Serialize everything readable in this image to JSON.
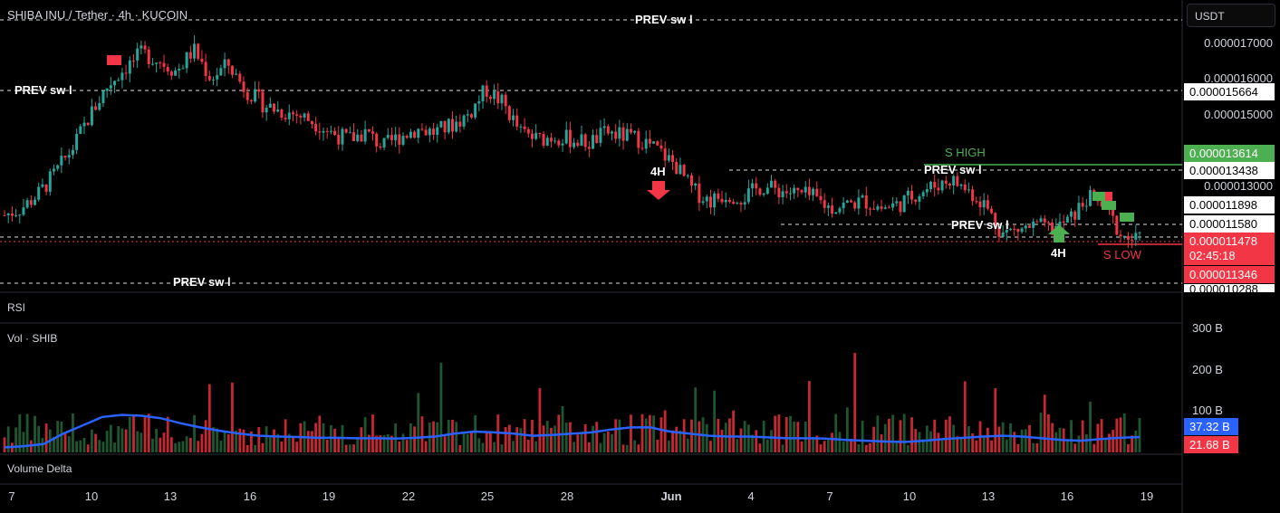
{
  "header": {
    "symbol": "SHIBA INU / Tether · 4h · KUCOIN"
  },
  "scale": {
    "currency": "USDT"
  },
  "price_axis": {
    "ticks": [
      "0.000017000",
      "0.000016000",
      "0.000015000",
      "0.000013000",
      "0.000011580",
      "0.000010288"
    ],
    "tags": {
      "prev_high": "0.000015664",
      "s_high": "0.000013614",
      "prev_mid": "0.000013438",
      "level_a": "0.000011898",
      "last": "0.000011478",
      "countdown": "02:45:18",
      "s_low": "0.000011346"
    }
  },
  "levels": {
    "prev_top": "PREV sw l",
    "prev_left": "PREV sw l",
    "prev_mid": "PREV sw l",
    "prev_low1": "PREV sw l",
    "prev_bottom": "PREV sw l",
    "s_high": "S HIGH",
    "s_low": "S LOW"
  },
  "signals": {
    "sell": "4H",
    "buy": "4H"
  },
  "panes": {
    "rsi": "RSI",
    "vol": "Vol · SHIB",
    "delta": "Volume Delta"
  },
  "volume_axis": {
    "ticks": [
      "300 B",
      "200 B",
      "100 B"
    ],
    "ma_value": "37.32 B",
    "vol_value": "21.68 B"
  },
  "time_axis": {
    "labels": [
      "7",
      "10",
      "13",
      "16",
      "19",
      "22",
      "25",
      "28",
      "Jun",
      "4",
      "7",
      "10",
      "13",
      "16",
      "19"
    ]
  },
  "colors": {
    "up": "#26a69a",
    "down": "#f23645",
    "vol_up": "#1e5631",
    "vol_down": "#c62832",
    "ma": "#2962ff",
    "s_high": "#4caf50",
    "s_low": "#f23645"
  },
  "chart_data": {
    "type": "candlestick",
    "close_series_usdt": [
      1.22e-05,
      1.24e-05,
      1.28e-05,
      1.34e-05,
      1.41e-05,
      1.5e-05,
      1.58e-05,
      1.63e-05,
      1.67e-05,
      1.65e-05,
      1.62e-05,
      1.68e-05,
      1.6e-05,
      1.64e-05,
      1.57e-05,
      1.53e-05,
      1.51e-05,
      1.5e-05,
      1.48e-05,
      1.45e-05,
      1.43e-05,
      1.45e-05,
      1.41e-05,
      1.44e-05,
      1.46e-05,
      1.45e-05,
      1.47e-05,
      1.5e-05,
      1.57e-05,
      1.53e-05,
      1.45e-05,
      1.43e-05,
      1.44e-05,
      1.43e-05,
      1.42e-05,
      1.45e-05,
      1.44e-05,
      1.43e-05,
      1.4e-05,
      1.36e-05,
      1.29e-05,
      1.26e-05,
      1.28e-05,
      1.27e-05,
      1.3e-05,
      1.29e-05,
      1.28e-05,
      1.27e-05,
      1.24e-05,
      1.25e-05,
      1.26e-05,
      1.24e-05,
      1.25e-05,
      1.28e-05,
      1.3e-05,
      1.32e-05,
      1.29e-05,
      1.25e-05,
      1.17e-05,
      1.18e-05,
      1.19e-05,
      1.18e-05,
      1.21e-05,
      1.27e-05,
      1.24e-05,
      1.16e-05,
      1.15e-05
    ],
    "volume_ma_series_b": [
      12,
      15,
      20,
      45,
      65,
      85,
      90,
      88,
      82,
      70,
      60,
      52,
      45,
      40,
      38,
      37,
      35,
      35,
      34,
      34,
      33,
      35,
      38,
      45,
      50,
      48,
      45,
      40,
      42,
      45,
      48,
      55,
      60,
      60,
      50,
      45,
      40,
      38,
      38,
      36,
      34,
      34,
      33,
      30,
      28,
      26,
      25,
      28,
      32,
      35,
      38,
      40,
      38,
      34,
      30,
      28,
      32,
      35,
      37
    ]
  }
}
